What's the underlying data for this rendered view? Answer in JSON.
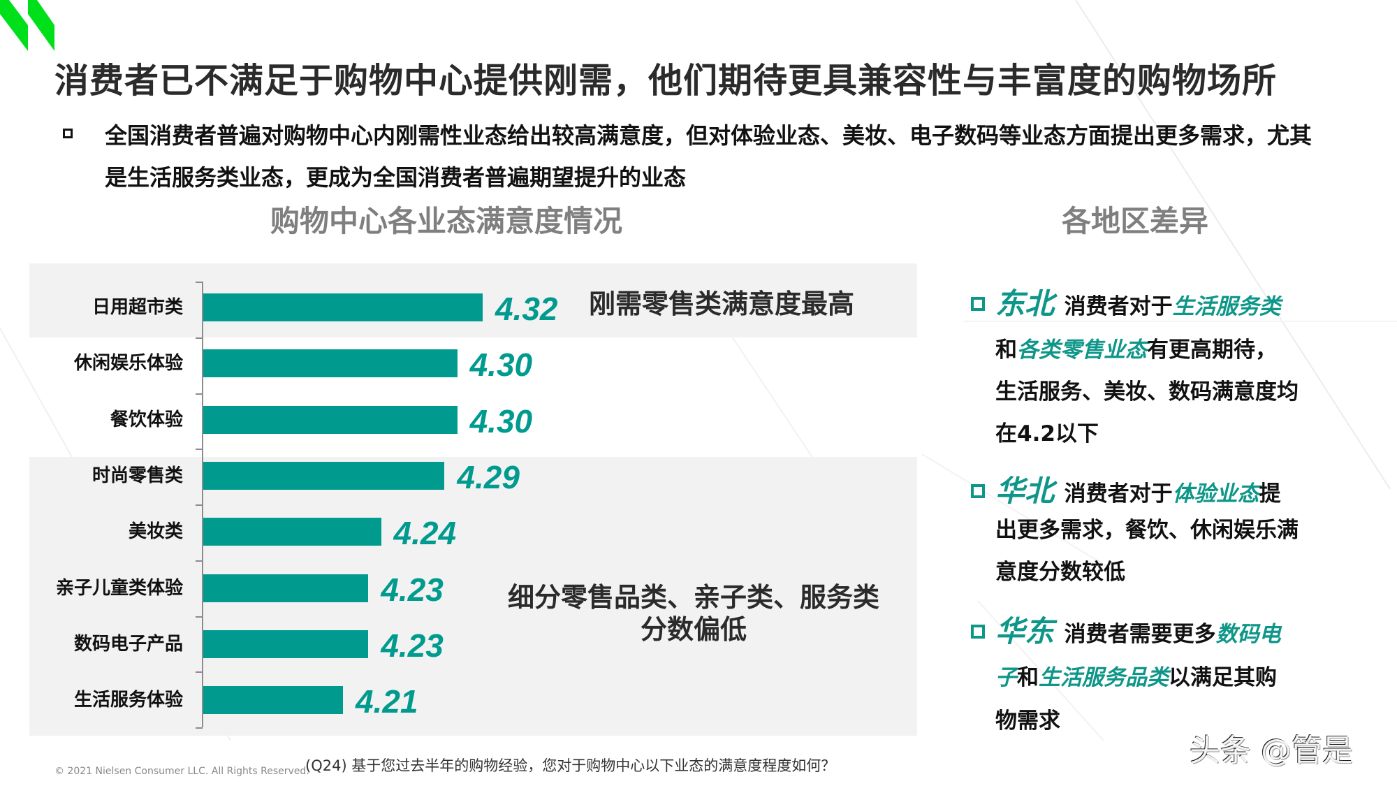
{
  "slide": {
    "title": "消费者已不满足于购物中心提供刚需，他们期待更具兼容性与丰富度的购物场所",
    "intro_line1": "全国消费者普遍对购物中心内刚需性业态给出较高满意度，但对体验业态、美妆、电子数码等业态方面提出更多需求，尤其",
    "intro_line2": "是生活服务类业态，更成为全国消费者普遍期望提升的业态",
    "left_section_title": "购物中心各业态满意度情况",
    "right_section_title": "各地区差异",
    "note_top": "刚需零售类满意度最高",
    "note_bottom_line1": "细分零售品类、亲子类、服务类",
    "note_bottom_line2": "分数偏低",
    "footnote": "(Q24) 基于您过去半年的购物经验，您对于购物中心以下业态的满意度程度如何？",
    "copyright": "© 2021 Nielsen Consumer LLC. All Rights Reserved.",
    "watermark": "头条 @管是",
    "colors": {
      "bar": "#009A8E",
      "accent": "#0E9688",
      "band": "#F2F2F2",
      "logo": "#00E01A"
    }
  },
  "chart_data": {
    "type": "bar",
    "orientation": "horizontal",
    "title": "购物中心各业态满意度情况",
    "categories": [
      "日用超市类",
      "休闲娱乐体验",
      "餐饮体验",
      "时尚零售类",
      "美妆类",
      "亲子儿童类体验",
      "数码电子产品",
      "生活服务体验"
    ],
    "values": [
      4.32,
      4.3,
      4.3,
      4.29,
      4.24,
      4.23,
      4.23,
      4.21
    ],
    "value_labels": [
      "4.32",
      "4.30",
      "4.30",
      "4.29",
      "4.24",
      "4.23",
      "4.23",
      "4.21"
    ],
    "xlabel": "",
    "ylabel": "",
    "grid": false,
    "legend": null,
    "annotations": [
      "刚需零售类满意度最高",
      "细分零售品类、亲子类、服务类分数偏低"
    ]
  },
  "regions": [
    {
      "name": "东北",
      "lines": [
        [
          {
            "t": "消费者对于",
            "h": false
          },
          {
            "t": "生活服务类",
            "h": true
          }
        ],
        [
          {
            "t": "和",
            "h": false
          },
          {
            "t": "各类零售业态",
            "h": true
          },
          {
            "t": "有更高期待，",
            "h": false
          }
        ],
        [
          {
            "t": "生活服务、美妆、数码满意度均",
            "h": false
          }
        ],
        [
          {
            "t": "在4.2以下",
            "h": false
          }
        ]
      ]
    },
    {
      "name": "华北",
      "lines": [
        [
          {
            "t": "消费者对于",
            "h": false
          },
          {
            "t": "体验业态",
            "h": true
          },
          {
            "t": "提",
            "h": false
          }
        ],
        [
          {
            "t": "出更多需求，餐饮、休闲娱乐满",
            "h": false
          }
        ],
        [
          {
            "t": "意度分数较低",
            "h": false
          }
        ]
      ]
    },
    {
      "name": "华东",
      "lines": [
        [
          {
            "t": "消费者需要更多",
            "h": false
          },
          {
            "t": "数码电",
            "h": true
          }
        ],
        [
          {
            "t": "子",
            "h": true
          },
          {
            "t": "和",
            "h": false
          },
          {
            "t": "生活服务品类",
            "h": true
          },
          {
            "t": "以满足其购",
            "h": false
          }
        ],
        [
          {
            "t": "物需求",
            "h": false
          }
        ]
      ]
    }
  ]
}
